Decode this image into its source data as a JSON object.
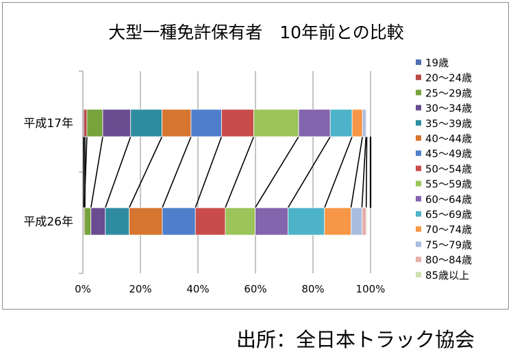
{
  "chart_data": {
    "type": "bar",
    "orientation": "horizontal",
    "stacked": "percent",
    "title": "大型一種免許保有者　10年前との比較",
    "categories": [
      "平成17年",
      "平成26年"
    ],
    "x_ticks": [
      "0%",
      "20%",
      "40%",
      "60%",
      "80%",
      "100%"
    ],
    "xlim": [
      0,
      100
    ],
    "grid": true,
    "legend_position": "right",
    "connector_lines": true,
    "series": [
      {
        "name": "19歳",
        "color": "#4e6fae",
        "values": [
          0.3,
          0.2
        ]
      },
      {
        "name": "20～24歳",
        "color": "#b94a48",
        "values": [
          1.1,
          0.3
        ]
      },
      {
        "name": "25～29歳",
        "color": "#77a23c",
        "values": [
          5.5,
          2.3
        ]
      },
      {
        "name": "30～34歳",
        "color": "#6a4c91",
        "values": [
          9.7,
          5.0
        ]
      },
      {
        "name": "35～39歳",
        "color": "#2f8ca0",
        "values": [
          10.9,
          8.3
        ]
      },
      {
        "name": "40～44歳",
        "color": "#d67631",
        "values": [
          10.1,
          11.5
        ]
      },
      {
        "name": "45～49歳",
        "color": "#4f7fcb",
        "values": [
          10.6,
          11.5
        ]
      },
      {
        "name": "50～54歳",
        "color": "#c94c4c",
        "values": [
          11.2,
          10.4
        ]
      },
      {
        "name": "55～59歳",
        "color": "#9bc45a",
        "values": [
          15.6,
          10.4
        ]
      },
      {
        "name": "60～64歳",
        "color": "#8364ad",
        "values": [
          11.0,
          11.4
        ]
      },
      {
        "name": "65～69歳",
        "color": "#4db3c9",
        "values": [
          7.6,
          12.7
        ]
      },
      {
        "name": "70～74歳",
        "color": "#f79646",
        "values": [
          3.6,
          9.2
        ]
      },
      {
        "name": "75～79歳",
        "color": "#a8bcde",
        "values": [
          1.2,
          3.8
        ]
      },
      {
        "name": "80～84歳",
        "color": "#e6aeac",
        "values": [
          0.3,
          1.5
        ]
      },
      {
        "name": "85歳以上",
        "color": "#cfe0b0",
        "values": [
          0.1,
          0.3
        ]
      }
    ]
  },
  "footer": {
    "source": "出所：全日本トラック協会"
  }
}
